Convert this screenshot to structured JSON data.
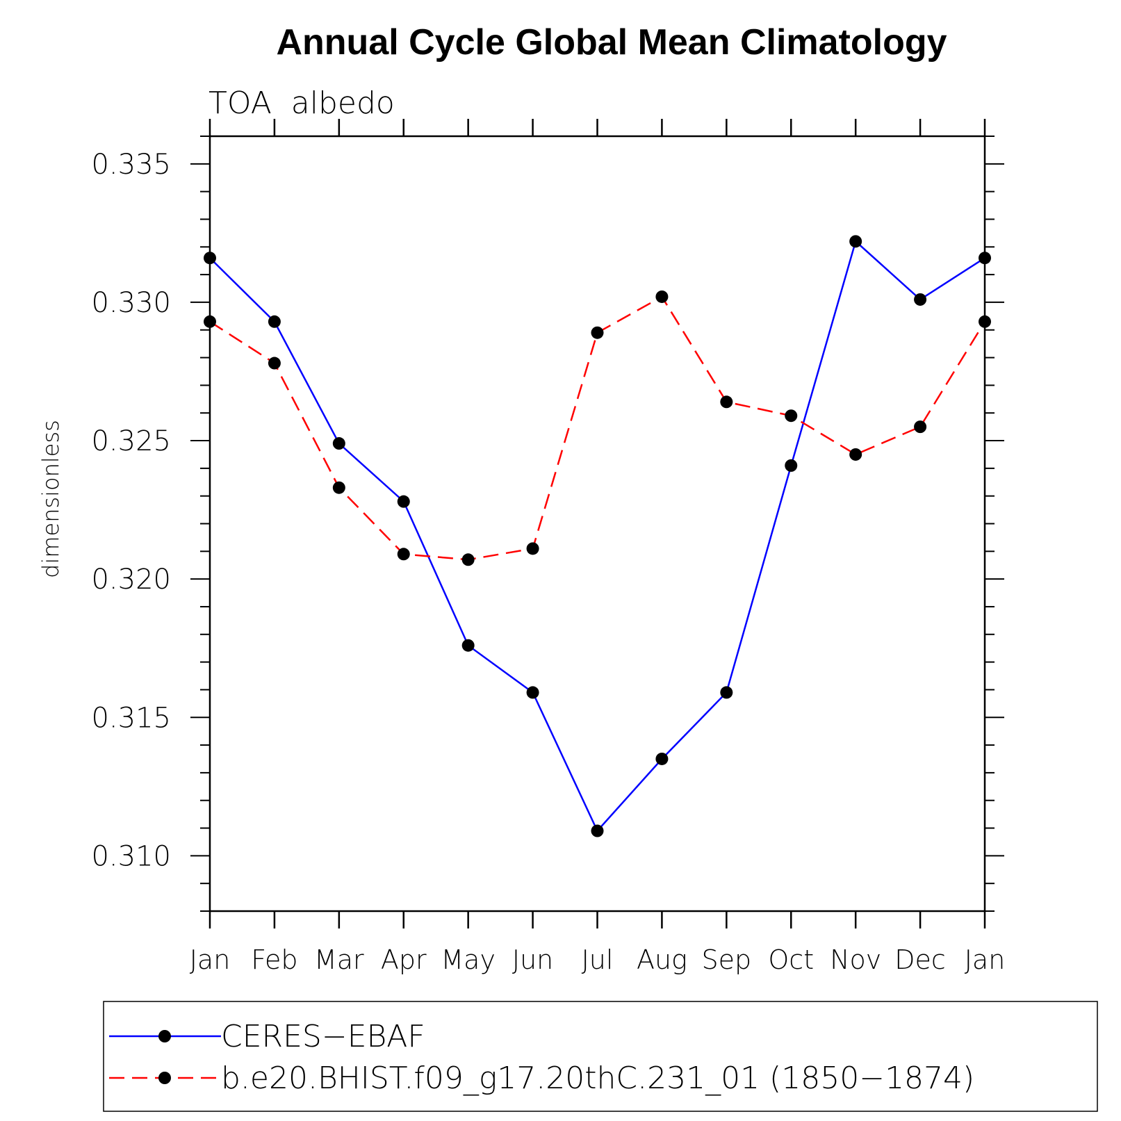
{
  "chart_data": {
    "type": "line",
    "title": "Annual Cycle Global Mean Climatology",
    "subtitle": "TOA  albedo",
    "xlabel": "",
    "ylabel": "dimensionless",
    "categories": [
      "Jan",
      "Feb",
      "Mar",
      "Apr",
      "May",
      "Jun",
      "Jul",
      "Aug",
      "Sep",
      "Oct",
      "Nov",
      "Dec",
      "Jan"
    ],
    "ylim": [
      0.308,
      0.336
    ],
    "y_ticks": [
      "0.310",
      "0.315",
      "0.320",
      "0.325",
      "0.330",
      "0.335"
    ],
    "legend_position": "bottom",
    "series": [
      {
        "name": "CERES−EBAF",
        "color": "#0000ff",
        "line_style": "solid",
        "marker": "filled-circle",
        "values": [
          0.3316,
          0.3293,
          0.3249,
          0.3228,
          0.3176,
          0.3159,
          0.3109,
          0.3135,
          0.3159,
          0.3241,
          0.3322,
          0.3301,
          0.3316
        ]
      },
      {
        "name": "b.e20.BHIST.f09_g17.20thC.231_01 (1850−1874)",
        "color": "#ff0000",
        "line_style": "dashed",
        "marker": "filled-circle",
        "values": [
          0.3293,
          0.3278,
          0.3233,
          0.3209,
          0.3207,
          0.3211,
          0.3289,
          0.3302,
          0.3264,
          0.3259,
          0.3245,
          0.3255,
          0.3293
        ]
      }
    ]
  }
}
